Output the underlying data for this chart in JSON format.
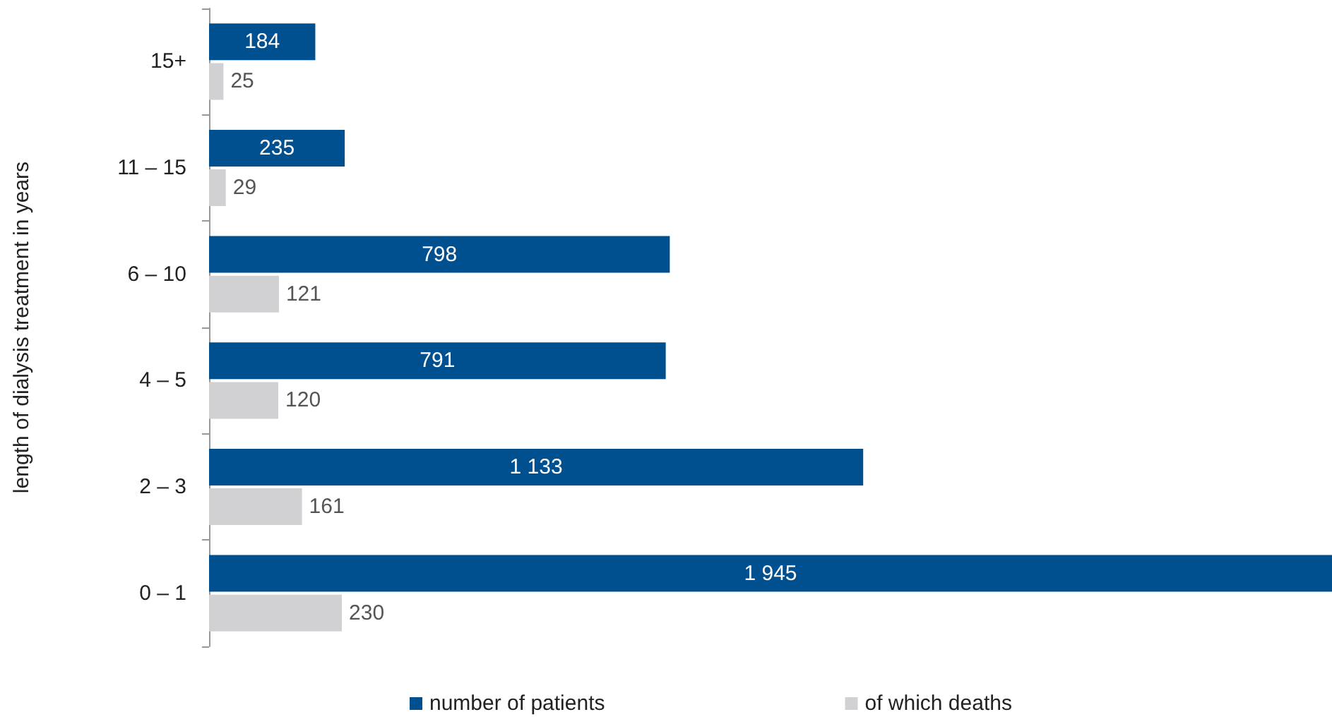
{
  "chart_data": {
    "type": "bar",
    "orientation": "horizontal",
    "ylabel": "length of dialysis treatment in years",
    "categories": [
      "15+",
      "11 – 15",
      "6 – 10",
      "4 – 5",
      "2 – 3",
      "0 – 1"
    ],
    "series": [
      {
        "name": "number of patients",
        "color": "#004f8f",
        "values": [
          184,
          235,
          798,
          791,
          1133,
          1945
        ],
        "value_labels": [
          "184",
          "235",
          "798",
          "791",
          "1 133",
          "1 945"
        ]
      },
      {
        "name": "of which deaths",
        "color": "#d1d1d3",
        "values": [
          25,
          29,
          121,
          120,
          161,
          230
        ],
        "value_labels": [
          "25",
          "29",
          "121",
          "120",
          "161",
          "230"
        ]
      }
    ],
    "legend": "bottom",
    "grid": false
  }
}
